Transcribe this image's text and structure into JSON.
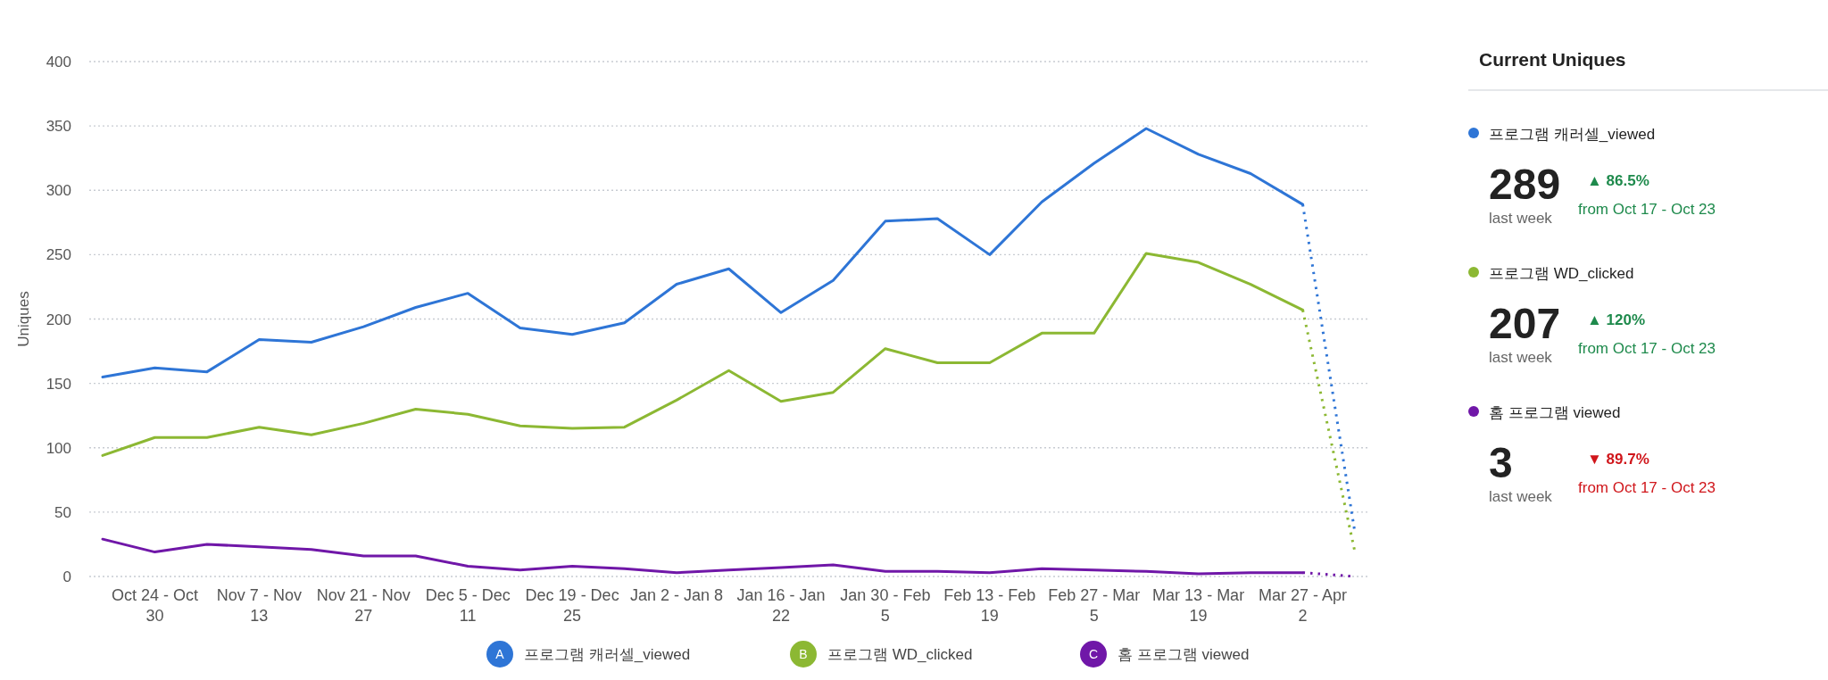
{
  "chart_data": [
    {
      "type": "line",
      "ylabel": "Uniques",
      "categories": [
        null,
        "Oct 24 - Oct 30",
        null,
        "Nov 7 - Nov 13",
        null,
        "Nov 21 - Nov 27",
        null,
        "Dec 5 - Dec 11",
        null,
        "Dec 19 - Dec 25",
        null,
        "Jan 2 - Jan 8",
        null,
        "Jan 16 - Jan 22",
        null,
        "Jan 30 - Feb 5",
        null,
        "Feb 13 - Feb 19",
        null,
        "Feb 27 - Mar 5",
        null,
        "Mar 13 - Mar 19",
        null,
        "Mar 27 - Apr 2",
        null
      ],
      "series": [
        {
          "name": "프로그램 캐러셀_viewed",
          "color": "#2e75d6",
          "values": [
            155,
            162,
            159,
            184,
            182,
            194,
            209,
            220,
            193,
            188,
            197,
            227,
            239,
            205,
            230,
            276,
            278,
            250,
            291,
            321,
            348,
            328,
            313,
            289,
            null
          ]
        },
        {
          "name": "프로그램 WD_clicked",
          "color": "#8cb833",
          "values": [
            94,
            108,
            108,
            116,
            110,
            119,
            130,
            126,
            117,
            115,
            116,
            137,
            160,
            136,
            143,
            177,
            166,
            166,
            189,
            189,
            251,
            244,
            227,
            207,
            null
          ]
        },
        {
          "name": "홈 프로그램 viewed",
          "color": "#7017a8",
          "values": [
            29,
            19,
            25,
            23,
            21,
            16,
            16,
            8,
            5,
            8,
            6,
            3,
            5,
            7,
            9,
            4,
            4,
            3,
            6,
            5,
            4,
            2,
            3,
            3,
            null
          ]
        },
        {
          "color": "#2e75d6",
          "line_style": "dotted",
          "values": [
            null,
            null,
            null,
            null,
            null,
            null,
            null,
            null,
            null,
            null,
            null,
            null,
            null,
            null,
            null,
            null,
            null,
            null,
            null,
            null,
            null,
            null,
            null,
            289,
            34
          ]
        },
        {
          "color": "#8cb833",
          "line_style": "dotted",
          "values": [
            null,
            null,
            null,
            null,
            null,
            null,
            null,
            null,
            null,
            null,
            null,
            null,
            null,
            null,
            null,
            null,
            null,
            null,
            null,
            null,
            null,
            null,
            null,
            207,
            19
          ]
        },
        {
          "color": "#7017a8",
          "line_style": "dotted",
          "values": [
            null,
            null,
            null,
            null,
            null,
            null,
            null,
            null,
            null,
            null,
            null,
            null,
            null,
            null,
            null,
            null,
            null,
            null,
            null,
            null,
            null,
            null,
            null,
            3,
            0
          ]
        }
      ],
      "ylim": [
        0,
        400
      ],
      "yticks": [
        0,
        50,
        100,
        150,
        200,
        250,
        300,
        350,
        400
      ],
      "grid": "y",
      "legend": "bottom",
      "line_style": "solid",
      "annotations": [
        "A",
        "B",
        "C"
      ]
    },
    {
      "type": "other",
      "title": "Current Uniques",
      "annotations": [
        "프로그램 캐러셀_viewed",
        "289",
        "last week",
        "▲ 86.5%",
        "from Oct 17 - Oct 23",
        "프로그램 WD_clicked",
        "207",
        "last week",
        "▲ 120%",
        "from Oct 17 - Oct 23",
        "홈 프로그램 viewed",
        "3",
        "last week",
        "▼ 89.7%",
        "from Oct 17 - Oct 23"
      ],
      "colors": [
        "#2e75d6",
        "#1e8a4c",
        "#8cb833",
        "#1e8a4c",
        "#7017a8",
        "#d0161b"
      ]
    }
  ]
}
